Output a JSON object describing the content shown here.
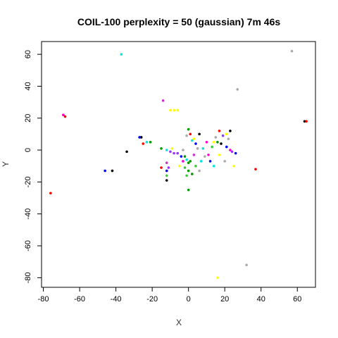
{
  "chart_data": {
    "type": "scatter",
    "title": "COIL-100 perplexity = 50 (gaussian) 7m 46s",
    "xlabel": "X",
    "ylabel": "Y",
    "xlim": [
      -81,
      70
    ],
    "ylim": [
      -86,
      68
    ],
    "xticks": [
      -80,
      -60,
      -40,
      -20,
      0,
      20,
      40,
      60
    ],
    "yticks": [
      -80,
      -60,
      -40,
      -20,
      0,
      20,
      40,
      60
    ],
    "grid": false,
    "legend": "none",
    "points": [
      {
        "x": -37,
        "y": 60,
        "color": "#00e5e5"
      },
      {
        "x": 57,
        "y": 62,
        "color": "#aaaaaa"
      },
      {
        "x": 27,
        "y": 38,
        "color": "#aaaaaa"
      },
      {
        "x": -14,
        "y": 31,
        "color": "#cc33cc"
      },
      {
        "x": -69,
        "y": 22,
        "color": "#ff0000"
      },
      {
        "x": -69,
        "y": 22,
        "color": "#ff00cc"
      },
      {
        "x": -68,
        "y": 21,
        "color": "#ff0000"
      },
      {
        "x": -10,
        "y": 25,
        "color": "#ffff00"
      },
      {
        "x": -8,
        "y": 25,
        "color": "#ffff00"
      },
      {
        "x": -6,
        "y": 25,
        "color": "#ffff00"
      },
      {
        "x": 64,
        "y": 18,
        "color": "#000000"
      },
      {
        "x": 65,
        "y": 18,
        "color": "#ff0000"
      },
      {
        "x": -27,
        "y": 8,
        "color": "#0000ff"
      },
      {
        "x": -26,
        "y": 8,
        "color": "#000000"
      },
      {
        "x": -23,
        "y": 5,
        "color": "#00e5e5"
      },
      {
        "x": -25,
        "y": 4,
        "color": "#ff0000"
      },
      {
        "x": -21,
        "y": 5,
        "color": "#009900"
      },
      {
        "x": -34,
        "y": -1,
        "color": "#000000"
      },
      {
        "x": -15,
        "y": 1,
        "color": "#009900"
      },
      {
        "x": -12,
        "y": 0,
        "color": "#00e5e5"
      },
      {
        "x": -10,
        "y": -1,
        "color": "#9933ff"
      },
      {
        "x": -8,
        "y": -2,
        "color": "#9933ff"
      },
      {
        "x": -6,
        "y": -2,
        "color": "#9933ff"
      },
      {
        "x": -9,
        "y": 1,
        "color": "#ffff00"
      },
      {
        "x": -4,
        "y": -4,
        "color": "#0000ff"
      },
      {
        "x": -2,
        "y": -4,
        "color": "#009900"
      },
      {
        "x": -1,
        "y": -6,
        "color": "#00e5e5"
      },
      {
        "x": -3,
        "y": -7,
        "color": "#ff00cc"
      },
      {
        "x": 0,
        "y": -8,
        "color": "#009900"
      },
      {
        "x": -5,
        "y": -10,
        "color": "#ffff00"
      },
      {
        "x": -2,
        "y": -11,
        "color": "#33cc33"
      },
      {
        "x": 0,
        "y": -13,
        "color": "#009900"
      },
      {
        "x": -12,
        "y": -8,
        "color": "#cc33cc"
      },
      {
        "x": -11,
        "y": -11,
        "color": "#9933ff"
      },
      {
        "x": -12,
        "y": -13,
        "color": "#0000ff"
      },
      {
        "x": -15,
        "y": -11,
        "color": "#ff0000"
      },
      {
        "x": -12,
        "y": -16,
        "color": "#33cc33"
      },
      {
        "x": -12,
        "y": -19,
        "color": "#000000"
      },
      {
        "x": -1,
        "y": 9,
        "color": "#aaaaaa"
      },
      {
        "x": 0,
        "y": 13,
        "color": "#009900"
      },
      {
        "x": 2,
        "y": 6,
        "color": "#00e5e5"
      },
      {
        "x": 4,
        "y": 4,
        "color": "#0000ff"
      },
      {
        "x": 6,
        "y": 10,
        "color": "#000000"
      },
      {
        "x": 1,
        "y": 10,
        "color": "#ff0000"
      },
      {
        "x": 5,
        "y": 1,
        "color": "#aaaaaa"
      },
      {
        "x": 7,
        "y": -7,
        "color": "#00e5e5"
      },
      {
        "x": 9,
        "y": -4,
        "color": "#aaaaaa"
      },
      {
        "x": 11,
        "y": -3,
        "color": "#ff00cc"
      },
      {
        "x": 3,
        "y": -3,
        "color": "#cc33cc"
      },
      {
        "x": 13,
        "y": 2,
        "color": "#33cc33"
      },
      {
        "x": 14,
        "y": 5,
        "color": "#ffff00"
      },
      {
        "x": 15,
        "y": 8,
        "color": "#aaaaaa"
      },
      {
        "x": 17,
        "y": 12,
        "color": "#ff0000"
      },
      {
        "x": 18,
        "y": 4,
        "color": "#000000"
      },
      {
        "x": 16,
        "y": 5,
        "color": "#009900"
      },
      {
        "x": 19,
        "y": 9,
        "color": "#9933ff"
      },
      {
        "x": 21,
        "y": 2,
        "color": "#0000ff"
      },
      {
        "x": 23,
        "y": 0,
        "color": "#ff00cc"
      },
      {
        "x": 24,
        "y": -1,
        "color": "#9933ff"
      },
      {
        "x": 22,
        "y": 7,
        "color": "#aaaaaa"
      },
      {
        "x": 23,
        "y": 12,
        "color": "#000000"
      },
      {
        "x": 17,
        "y": -3,
        "color": "#ffff00"
      },
      {
        "x": 20,
        "y": -7,
        "color": "#aaaaaa"
      },
      {
        "x": 14,
        "y": -10,
        "color": "#00e5e5"
      },
      {
        "x": 4,
        "y": -10,
        "color": "#33cc33"
      },
      {
        "x": 6,
        "y": -13,
        "color": "#aaaaaa"
      },
      {
        "x": 1,
        "y": -7,
        "color": "#009900"
      },
      {
        "x": -1,
        "y": -16,
        "color": "#33cc33"
      },
      {
        "x": 2,
        "y": -15,
        "color": "#009900"
      },
      {
        "x": 0,
        "y": -25,
        "color": "#009900"
      },
      {
        "x": 25,
        "y": -10,
        "color": "#ffff00"
      },
      {
        "x": 37,
        "y": -12,
        "color": "#ff0000"
      },
      {
        "x": -46,
        "y": -13,
        "color": "#0000ff"
      },
      {
        "x": -42,
        "y": -13,
        "color": "#000000"
      },
      {
        "x": -76,
        "y": -27,
        "color": "#ff0000"
      },
      {
        "x": 32,
        "y": -72,
        "color": "#aaaaaa"
      },
      {
        "x": 16,
        "y": -80,
        "color": "#ffff00"
      },
      {
        "x": 10,
        "y": 5,
        "color": "#ff00cc"
      },
      {
        "x": 8,
        "y": 1,
        "color": "#00e5e5"
      },
      {
        "x": 12,
        "y": -7,
        "color": "#0000ff"
      },
      {
        "x": 3,
        "y": 7,
        "color": "#ffff00"
      },
      {
        "x": -3,
        "y": 0,
        "color": "#aaaaaa"
      },
      {
        "x": 21,
        "y": 10,
        "color": "#ffff00"
      },
      {
        "x": 26,
        "y": -2,
        "color": "#0000ff"
      }
    ]
  }
}
